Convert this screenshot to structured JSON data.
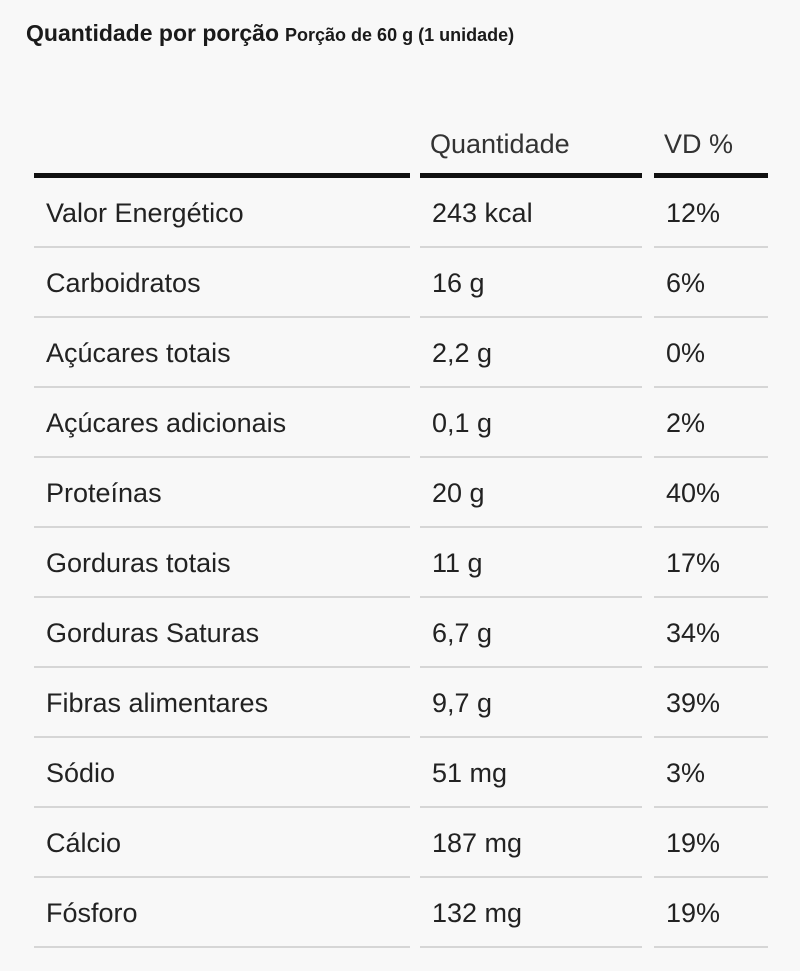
{
  "header": {
    "title": "Quantidade por porção",
    "portion": "Porção de 60 g (1 unidade)"
  },
  "table": {
    "columns": [
      "",
      "Quantidade",
      "VD %"
    ],
    "rows": [
      {
        "name": "Valor Energético",
        "amount": "243 kcal",
        "vd": "12%"
      },
      {
        "name": "Carboidratos",
        "amount": "16 g",
        "vd": "6%"
      },
      {
        "name": "Açúcares totais",
        "amount": "2,2 g",
        "vd": "0%"
      },
      {
        "name": "Açúcares adicionais",
        "amount": "0,1 g",
        "vd": "2%"
      },
      {
        "name": "Proteínas",
        "amount": "20 g",
        "vd": "40%"
      },
      {
        "name": "Gorduras totais",
        "amount": "11 g",
        "vd": "17%"
      },
      {
        "name": "Gorduras Saturas",
        "amount": "6,7 g",
        "vd": "34%"
      },
      {
        "name": "Fibras alimentares",
        "amount": "9,7 g",
        "vd": "39%"
      },
      {
        "name": "Sódio",
        "amount": "51 mg",
        "vd": "3%"
      },
      {
        "name": "Cálcio",
        "amount": "187 mg",
        "vd": "19%"
      },
      {
        "name": "Fósforo",
        "amount": "132 mg",
        "vd": "19%"
      }
    ]
  }
}
